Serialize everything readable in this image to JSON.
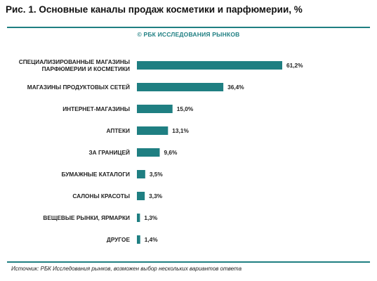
{
  "header": {
    "title": "Рис. 1. Основные каналы продаж косметики и парфюмерии, %",
    "watermark": "© РБК ИССЛЕДОВАНИЯ РЫНКОВ"
  },
  "footer": {
    "source": "Источник: РБК Исследования рынков, возможен выбор нескольких вариантов ответа"
  },
  "colors": {
    "bar": "#1f7f82",
    "accent": "#1f7f82"
  },
  "chart_data": {
    "type": "bar",
    "orientation": "horizontal",
    "title": "Рис. 1. Основные каналы продаж косметики и парфюмерии, %",
    "categories": [
      [
        "СПЕЦИАЛИЗИРОВАННЫЕ МАГАЗИНЫ",
        "ПАРФЮМЕРИИ И КОСМЕТИКИ"
      ],
      [
        "МАГАЗИНЫ ПРОДУКТОВЫХ СЕТЕЙ"
      ],
      [
        "ИНТЕРНЕТ-МАГАЗИНЫ"
      ],
      [
        "АПТЕКИ"
      ],
      [
        "ЗА ГРАНИЦЕЙ"
      ],
      [
        "БУМАЖНЫЕ КАТАЛОГИ"
      ],
      [
        "САЛОНЫ КРАСОТЫ"
      ],
      [
        "ВЕЩЕВЫЕ РЫНКИ, ЯРМАРКИ"
      ],
      [
        "ДРУГОЕ"
      ]
    ],
    "values": [
      61.2,
      36.4,
      15.0,
      13.1,
      9.6,
      3.5,
      3.3,
      1.3,
      1.4
    ],
    "value_labels": [
      "61,2%",
      "36,4%",
      "15,0%",
      "13,1%",
      "9,6%",
      "3,5%",
      "3,3%",
      "1,3%",
      "1,4%"
    ],
    "xlim": [
      0,
      61.2
    ],
    "grid": false,
    "legend": "none"
  }
}
